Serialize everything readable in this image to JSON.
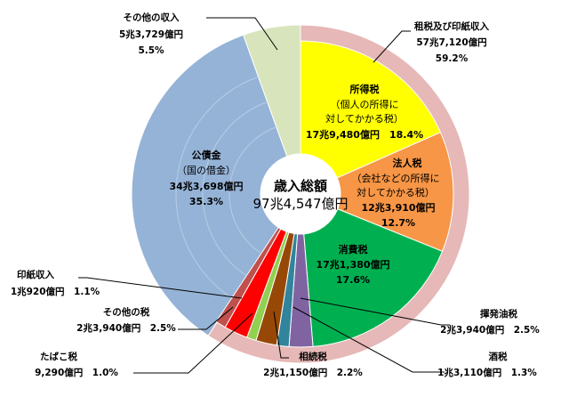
{
  "chart_data": {
    "type": "pie",
    "title": "",
    "center": {
      "label": "歳入総額",
      "value": "97兆4,547億円"
    },
    "outer_ring": [
      {
        "name": "租税及び印紙収入",
        "amount": "57兆7,120億円",
        "pct": "59.2%",
        "value": 59.2,
        "color": "#e6b8b7"
      },
      {
        "name": "公債金",
        "amount": "34兆3,698億円",
        "pct": "35.3%",
        "value": 35.3,
        "color": "#95b3d7"
      },
      {
        "name": "その他の収入",
        "amount": "5兆3,729億円",
        "pct": "5.5%",
        "value": 5.5,
        "color": "#d8e4bc"
      }
    ],
    "inner_ring": [
      {
        "name": "所得税",
        "sub": "（個人の所得に対してかかる税）",
        "amount": "17兆9,480億円",
        "pct": "18.4%",
        "value": 18.4,
        "color": "#ffff00"
      },
      {
        "name": "法人税",
        "sub": "（会社などの所得に対してかかる税）",
        "amount": "12兆3,910億円",
        "pct": "12.7%",
        "value": 12.7,
        "color": "#f79646"
      },
      {
        "name": "消費税",
        "amount": "17兆1,380億円",
        "pct": "17.6%",
        "value": 17.6,
        "color": "#00b050"
      },
      {
        "name": "揮発油税",
        "amount": "2兆3,940億円",
        "pct": "2.5%",
        "value": 2.5,
        "color": "#8064a2"
      },
      {
        "name": "酒税",
        "amount": "1兆3,110億円",
        "pct": "1.3%",
        "value": 1.3,
        "color": "#31849b"
      },
      {
        "name": "相続税",
        "amount": "2兆1,150億円",
        "pct": "2.2%",
        "value": 2.2,
        "color": "#984806"
      },
      {
        "name": "たばこ税",
        "amount": "9,290億円",
        "pct": "1.0%",
        "value": 1.0,
        "color": "#92d050"
      },
      {
        "name": "その他の税",
        "amount": "2兆3,940億円",
        "pct": "2.5%",
        "value": 2.5,
        "color": "#ff0000"
      },
      {
        "name": "印紙収入",
        "amount": "1兆920億円",
        "pct": "1.1%",
        "value": 1.1,
        "color": "#c0504d"
      }
    ],
    "inner_sub_lines": {
      "所得税": [
        "（個人の所得に",
        "対してかかる税）"
      ],
      "法人税": [
        "（会社などの所得に",
        "対してかかる税）"
      ],
      "公債金": [
        "（国の借金）"
      ]
    }
  }
}
